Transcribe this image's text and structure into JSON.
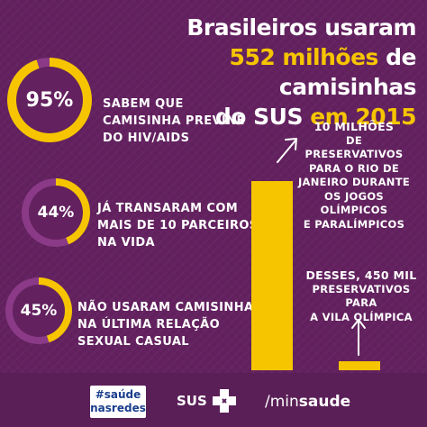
{
  "title": {
    "line1": "Brasileiros usaram",
    "line2_highlight": "552 milhões",
    "line2_rest": " de camisinhas",
    "line3_start": "do SUS ",
    "line3_highlight": "em 2015"
  },
  "stats": [
    {
      "pct": "95%",
      "value": 0.95,
      "line1": "SABEM QUE",
      "line2": "CAMISINHA PREVINE",
      "line3a": "DO ",
      "line3b": "HIV/AIDS"
    },
    {
      "pct": "44%",
      "value": 0.44,
      "line1": "JÁ TRANSARAM COM",
      "line2a": "MAIS DE ",
      "line2b": "10 PARCEIROS",
      "line3": "NA VIDA"
    },
    {
      "pct": "45%",
      "value": 0.45,
      "line1a": "NÃO USARAM",
      "line1b": " CAMISINHA",
      "line2": "NA ÚLTIMA RELAÇÃO",
      "line3": "SEXUAL CASUAL"
    }
  ],
  "bars": [
    {
      "value_millions": 10,
      "note_l1": "10 MILHÕES",
      "note_l2": "DE PRESERVATIVOS",
      "note_l3": "PARA O RIO DE",
      "note_l4": "JANEIRO DURANTE",
      "note_l5": "OS JOGOS OLÍMPICOS",
      "note_l6": "E PARALÍMPICOS"
    },
    {
      "value_millions": 0.45,
      "note_l1a": "DESSES, ",
      "note_l1b": "450 MIL",
      "note_l2": "PRESERVATIVOS PARA",
      "note_l3": "A VILA OLÍMPICA"
    }
  ],
  "footer": {
    "tag_l1": "#saúde",
    "tag_l2": "nasredes",
    "sus": "SUS",
    "min_a": "/min",
    "min_b": "saude"
  },
  "colors": {
    "accent": "#f6c500",
    "background": "#63215f",
    "ring_track": "#8a3a86"
  }
}
